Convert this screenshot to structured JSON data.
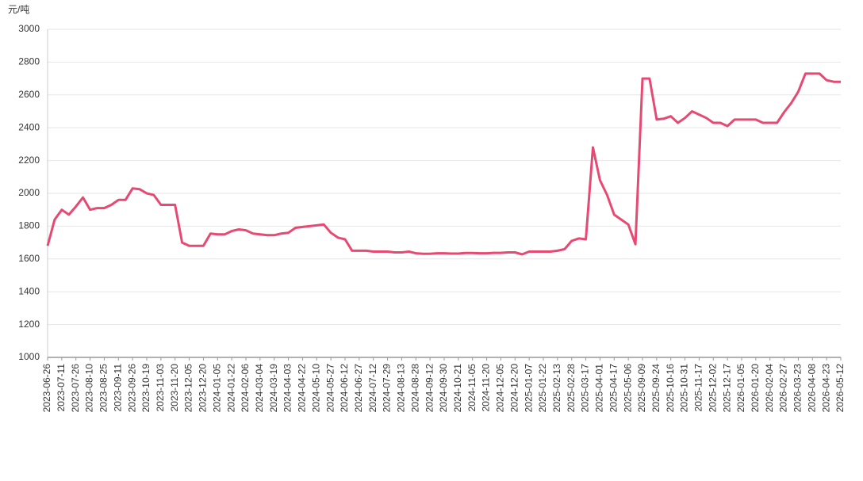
{
  "chart_data": {
    "type": "line",
    "y_label": "元/吨",
    "categories": [
      "2023-06-26",
      null,
      "2023-07-11",
      null,
      "2023-07-26",
      null,
      "2023-08-10",
      null,
      "2023-08-25",
      null,
      "2023-09-11",
      null,
      "2023-09-26",
      null,
      "2023-10-19",
      null,
      "2023-11-03",
      null,
      "2023-11-20",
      null,
      "2023-12-05",
      null,
      "2023-12-20",
      null,
      "2024-01-05",
      null,
      "2024-01-22",
      null,
      "2024-02-06",
      null,
      "2024-03-04",
      null,
      "2024-03-19",
      null,
      "2024-04-03",
      null,
      "2024-04-22",
      null,
      "2024-05-10",
      null,
      "2024-05-27",
      null,
      "2024-06-12",
      null,
      "2024-06-27",
      null,
      "2024-07-12",
      null,
      "2024-07-29",
      null,
      "2024-08-13",
      null,
      "2024-08-28",
      null,
      "2024-09-12",
      null,
      "2024-09-30",
      null,
      "2024-10-21",
      null,
      "2024-11-05",
      null,
      "2024-11-20",
      null,
      "2024-12-05",
      null,
      "2024-12-20",
      null,
      "2025-01-07",
      null,
      "2025-01-22",
      null,
      "2025-02-13",
      null,
      "2025-02-28",
      null,
      "2025-03-17",
      null,
      "2025-04-01",
      null,
      "2025-04-17",
      null,
      "2025-05-06",
      null,
      "2025-09-09",
      null,
      "2025-09-24",
      null,
      "2025-10-16",
      null,
      "2025-10-31",
      null,
      "2025-11-17",
      null,
      "2025-12-02",
      null,
      "2025-12-17",
      null,
      "2026-01-05",
      null,
      "2026-01-20",
      null,
      "2026-02-04",
      null,
      "2026-02-27",
      null,
      "2026-03-23",
      null,
      "2026-04-08",
      null,
      "2026-04-23",
      null,
      "2026-05-12"
    ],
    "values": [
      1680,
      1840,
      1900,
      1870,
      1920,
      1975,
      1900,
      1910,
      1910,
      1930,
      1960,
      1960,
      2030,
      2025,
      2000,
      1990,
      1930,
      1930,
      1930,
      1700,
      1680,
      1680,
      1680,
      1755,
      1750,
      1750,
      1770,
      1780,
      1775,
      1755,
      1750,
      1745,
      1745,
      1755,
      1760,
      1790,
      1795,
      1800,
      1805,
      1810,
      1760,
      1730,
      1720,
      1650,
      1650,
      1650,
      1645,
      1645,
      1645,
      1640,
      1640,
      1645,
      1635,
      1632,
      1632,
      1635,
      1635,
      1633,
      1633,
      1636,
      1636,
      1635,
      1635,
      1637,
      1637,
      1640,
      1640,
      1628,
      1645,
      1645,
      1645,
      1645,
      1650,
      1660,
      1710,
      1725,
      1720,
      2280,
      2080,
      1990,
      1870,
      1840,
      1810,
      1690,
      2700,
      2700,
      2450,
      2455,
      2470,
      2430,
      2460,
      2500,
      2480,
      2460,
      2430,
      2430,
      2410,
      2450,
      2450,
      2450,
      2450,
      2430,
      2430,
      2430,
      2495,
      2550,
      2620,
      2730,
      2730,
      2730,
      2690,
      2680,
      2680
    ],
    "color": "#e64a73",
    "ylim": [
      1000,
      3000
    ],
    "yticks": [
      1000,
      1200,
      1400,
      1600,
      1800,
      2000,
      2200,
      2400,
      2600,
      2800,
      3000
    ],
    "grid": true
  }
}
